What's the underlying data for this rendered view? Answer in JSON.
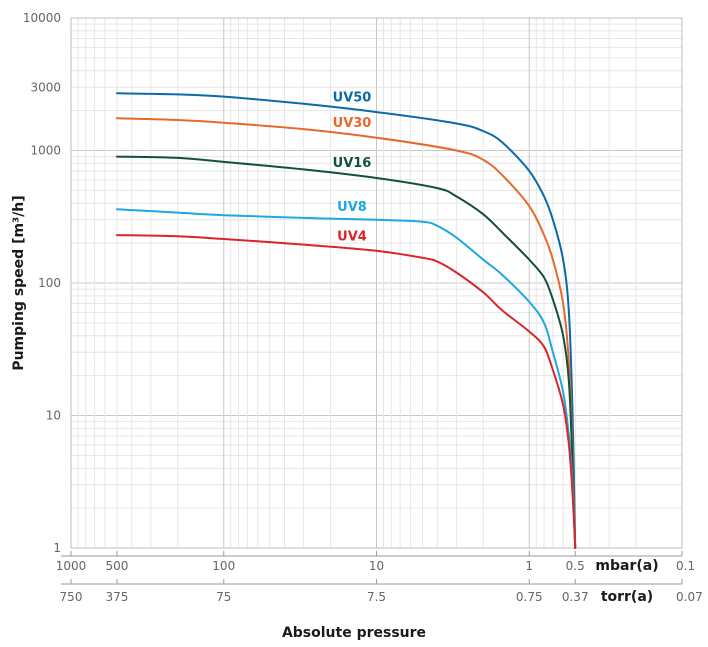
{
  "chart_data": {
    "type": "line",
    "title": "",
    "xlabel": "Absolute pressure",
    "ylabel": "Pumping speed [m³/h]",
    "x_scale": "log",
    "y_scale": "log",
    "x_direction": "reversed",
    "xlim": [
      1000,
      0.1
    ],
    "ylim": [
      1,
      10000
    ],
    "grid": true,
    "y_ticks": [
      "10000",
      "3000",
      "1000",
      "100",
      "10",
      "1"
    ],
    "y_tick_values": [
      10000,
      3000,
      1000,
      100,
      10,
      1
    ],
    "x_axes": [
      {
        "unit_label": "mbar(a)",
        "ticks": [
          "1000",
          "500",
          "100",
          "10",
          "1",
          "0.5",
          "0.1"
        ],
        "tick_values": [
          1000,
          500,
          100,
          10,
          1,
          0.5,
          0.1
        ]
      },
      {
        "unit_label": "torr(a)",
        "ticks": [
          "750",
          "375",
          "75",
          "7.5",
          "0.75",
          "0.37",
          "0.07"
        ],
        "tick_values": [
          1000,
          500,
          100,
          10,
          1,
          0.5,
          0.1
        ]
      }
    ],
    "series": [
      {
        "name": "UV50",
        "color": "#0a6aa8",
        "points": [
          [
            500,
            2700
          ],
          [
            200,
            2650
          ],
          [
            100,
            2550
          ],
          [
            30,
            2250
          ],
          [
            10,
            1950
          ],
          [
            3,
            1600
          ],
          [
            2,
            1400
          ],
          [
            1.5,
            1150
          ],
          [
            1,
            700
          ],
          [
            0.8,
            450
          ],
          [
            0.7,
            300
          ],
          [
            0.6,
            150
          ],
          [
            0.55,
            60
          ],
          [
            0.52,
            10
          ],
          [
            0.5,
            1
          ]
        ]
      },
      {
        "name": "UV30",
        "color": "#e8682a",
        "points": [
          [
            500,
            1750
          ],
          [
            200,
            1700
          ],
          [
            100,
            1620
          ],
          [
            30,
            1450
          ],
          [
            10,
            1250
          ],
          [
            3,
            1000
          ],
          [
            2,
            850
          ],
          [
            1.5,
            650
          ],
          [
            1,
            380
          ],
          [
            0.8,
            230
          ],
          [
            0.7,
            150
          ],
          [
            0.6,
            70
          ],
          [
            0.55,
            25
          ],
          [
            0.52,
            5
          ],
          [
            0.5,
            1
          ]
        ]
      },
      {
        "name": "UV16",
        "color": "#13503a",
        "points": [
          [
            500,
            900
          ],
          [
            200,
            880
          ],
          [
            100,
            820
          ],
          [
            30,
            720
          ],
          [
            10,
            620
          ],
          [
            4,
            520
          ],
          [
            3,
            450
          ],
          [
            2,
            330
          ],
          [
            1.5,
            240
          ],
          [
            1,
            150
          ],
          [
            0.8,
            110
          ],
          [
            0.7,
            75
          ],
          [
            0.6,
            40
          ],
          [
            0.55,
            18
          ],
          [
            0.52,
            4
          ],
          [
            0.5,
            1
          ]
        ]
      },
      {
        "name": "UV8",
        "color": "#1ea7e0",
        "points": [
          [
            500,
            360
          ],
          [
            200,
            340
          ],
          [
            100,
            325
          ],
          [
            30,
            310
          ],
          [
            10,
            300
          ],
          [
            5,
            290
          ],
          [
            4,
            270
          ],
          [
            3,
            220
          ],
          [
            2,
            150
          ],
          [
            1.5,
            115
          ],
          [
            1,
            72
          ],
          [
            0.8,
            50
          ],
          [
            0.7,
            30
          ],
          [
            0.6,
            15
          ],
          [
            0.55,
            7
          ],
          [
            0.52,
            3
          ],
          [
            0.5,
            1
          ]
        ]
      },
      {
        "name": "UV4",
        "color": "#d9252a",
        "points": [
          [
            500,
            230
          ],
          [
            200,
            225
          ],
          [
            100,
            215
          ],
          [
            30,
            195
          ],
          [
            10,
            175
          ],
          [
            5,
            155
          ],
          [
            4,
            145
          ],
          [
            3,
            120
          ],
          [
            2,
            85
          ],
          [
            1.5,
            62
          ],
          [
            1,
            43
          ],
          [
            0.8,
            33
          ],
          [
            0.7,
            22
          ],
          [
            0.6,
            12
          ],
          [
            0.55,
            6
          ],
          [
            0.52,
            2.5
          ],
          [
            0.5,
            1
          ]
        ]
      }
    ]
  }
}
